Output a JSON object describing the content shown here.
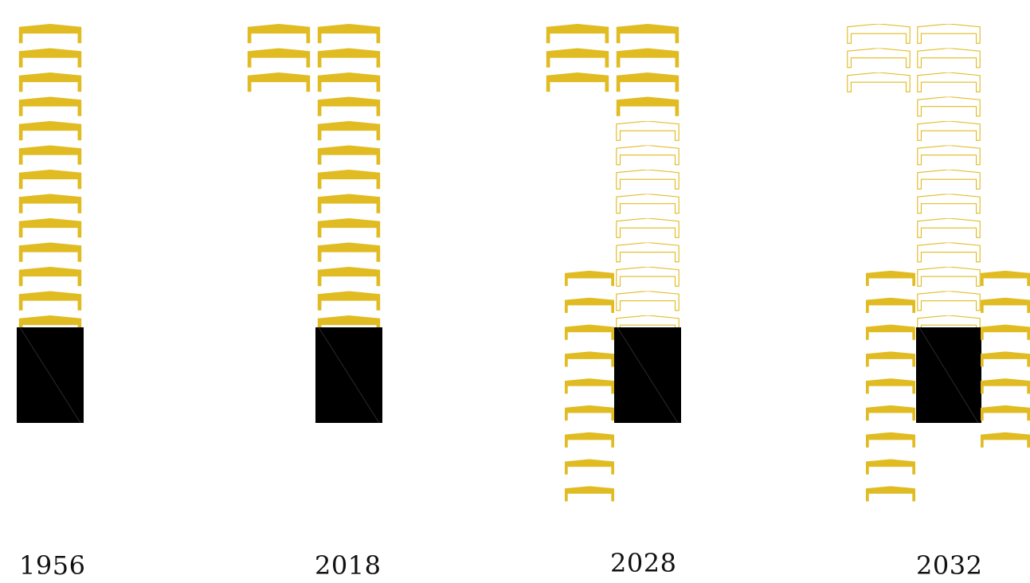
{
  "colors": {
    "hall": "#e0bb22",
    "core": "#000000",
    "background": "#ffffff"
  },
  "phases": [
    {
      "year": "1956"
    },
    {
      "year": "2018"
    },
    {
      "year": "2028"
    },
    {
      "year": "2032"
    }
  ]
}
